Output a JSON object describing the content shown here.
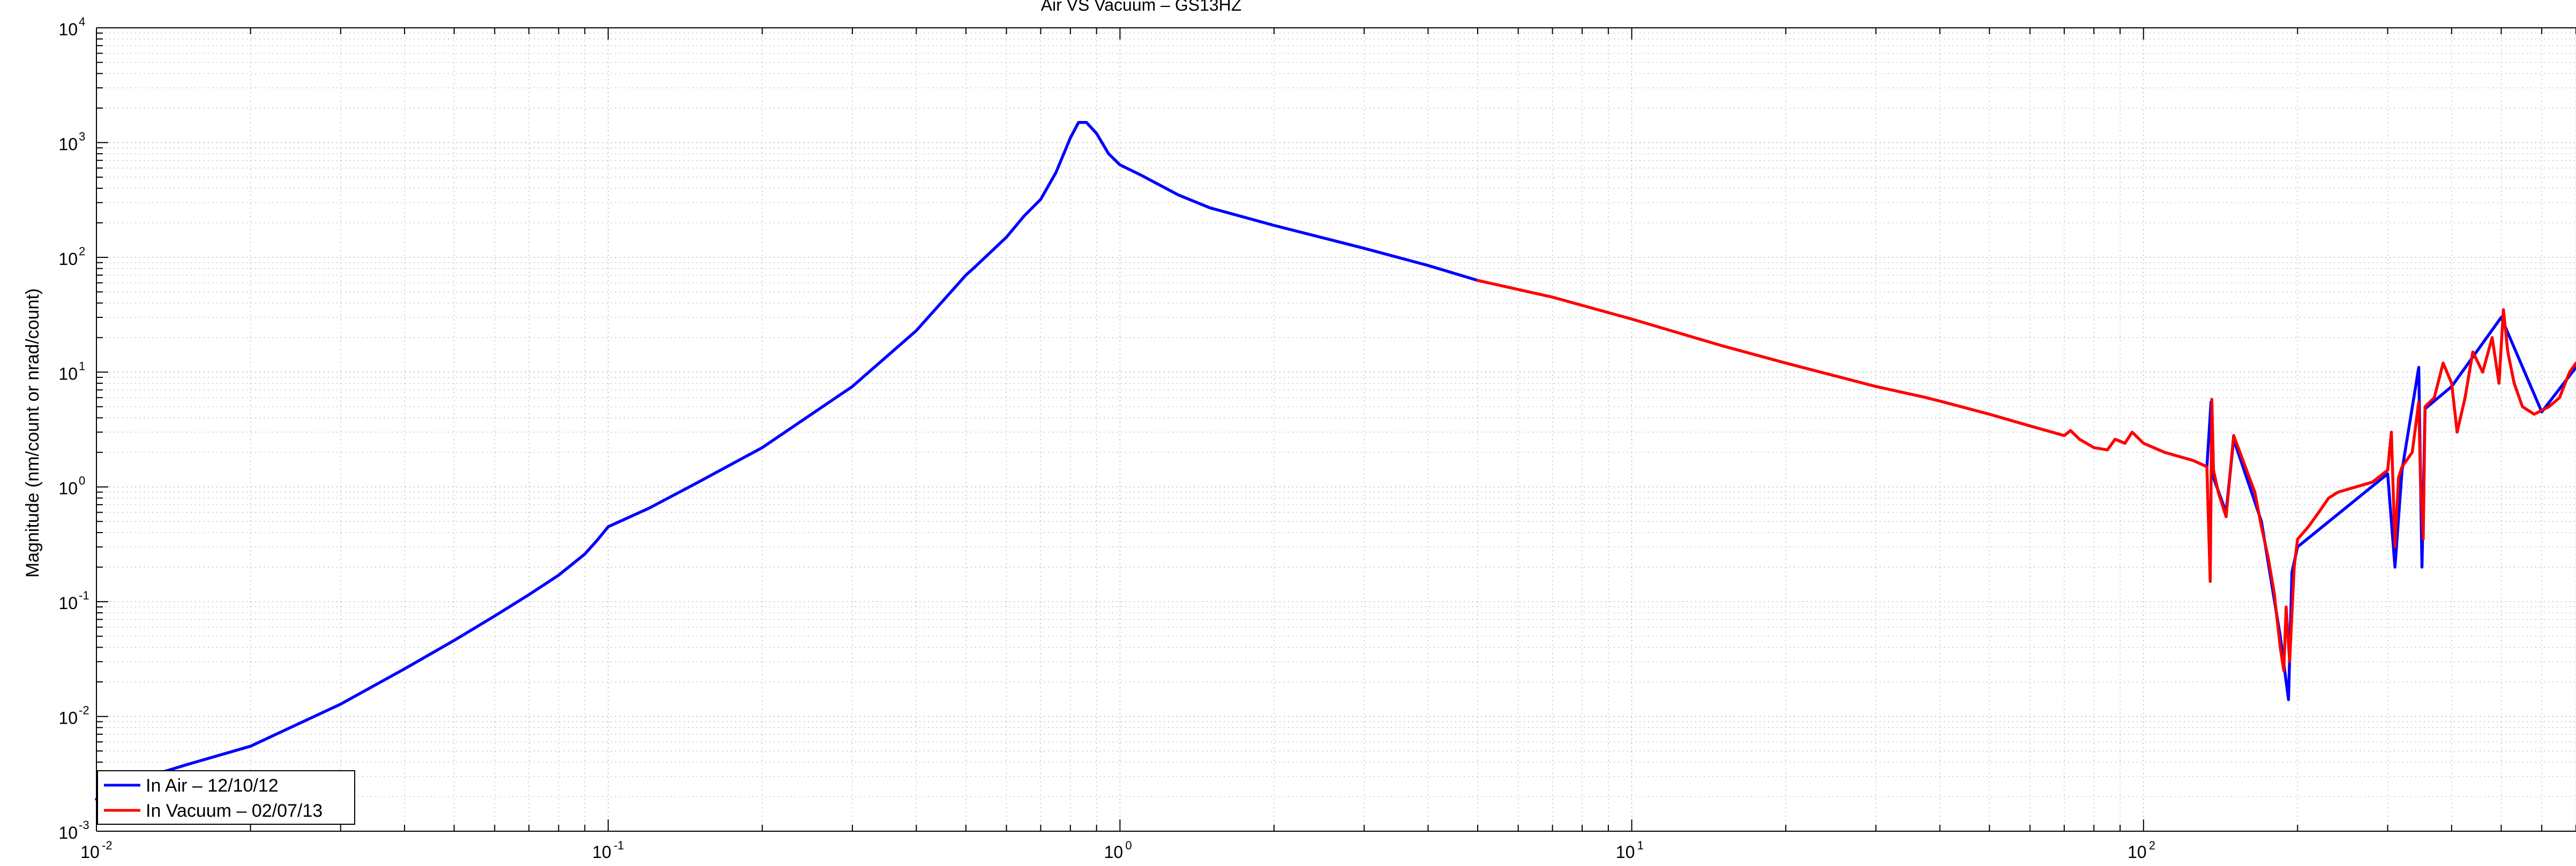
{
  "chart_data": {
    "type": "line",
    "title": "Air VS Vacuum – GS13HZ",
    "xlabel": "",
    "ylabel": "Magnitude (nm/count or nrad/count)",
    "xscale": "log",
    "yscale": "log",
    "xlim": [
      0.01,
      700
    ],
    "ylim": [
      0.001,
      10000
    ],
    "x_ticks": [
      {
        "base": "10",
        "exp": "-2",
        "value": 0.01
      },
      {
        "base": "10",
        "exp": "-1",
        "value": 0.1
      },
      {
        "base": "10",
        "exp": "0",
        "value": 1
      },
      {
        "base": "10",
        "exp": "1",
        "value": 10
      },
      {
        "base": "10",
        "exp": "2",
        "value": 100
      }
    ],
    "y_ticks": [
      {
        "base": "10",
        "exp": "-3",
        "value": 0.001
      },
      {
        "base": "10",
        "exp": "-2",
        "value": 0.01
      },
      {
        "base": "10",
        "exp": "-1",
        "value": 0.1
      },
      {
        "base": "10",
        "exp": "0",
        "value": 1
      },
      {
        "base": "10",
        "exp": "1",
        "value": 10
      },
      {
        "base": "10",
        "exp": "2",
        "value": 100
      },
      {
        "base": "10",
        "exp": "3",
        "value": 1000
      },
      {
        "base": "10",
        "exp": "4",
        "value": 10000
      }
    ],
    "grid": true,
    "legend_position": "bottom-left",
    "series": [
      {
        "name": "In Air – 12/10/12",
        "color": "#0000ff",
        "points": [
          [
            0.01,
            0.0019
          ],
          [
            0.012,
            0.0028
          ],
          [
            0.015,
            0.0038
          ],
          [
            0.02,
            0.0055
          ],
          [
            0.03,
            0.0128
          ],
          [
            0.04,
            0.026
          ],
          [
            0.05,
            0.046
          ],
          [
            0.06,
            0.075
          ],
          [
            0.07,
            0.115
          ],
          [
            0.08,
            0.17
          ],
          [
            0.09,
            0.26
          ],
          [
            0.095,
            0.34
          ],
          [
            0.1,
            0.45
          ],
          [
            0.12,
            0.65
          ],
          [
            0.15,
            1.1
          ],
          [
            0.2,
            2.2
          ],
          [
            0.3,
            7.5
          ],
          [
            0.4,
            23
          ],
          [
            0.5,
            70
          ],
          [
            0.52,
            82
          ],
          [
            0.6,
            150
          ],
          [
            0.65,
            230
          ],
          [
            0.7,
            320
          ],
          [
            0.75,
            550
          ],
          [
            0.8,
            1100
          ],
          [
            0.83,
            1500
          ],
          [
            0.86,
            1500
          ],
          [
            0.9,
            1200
          ],
          [
            0.95,
            800
          ],
          [
            1.0,
            640
          ],
          [
            1.1,
            520
          ],
          [
            1.3,
            350
          ],
          [
            1.5,
            270
          ],
          [
            2.0,
            190
          ],
          [
            3.0,
            120
          ],
          [
            4.0,
            85
          ],
          [
            5.0,
            63
          ]
        ]
      },
      {
        "name": "In Vacuum – 02/07/13",
        "color": "#ff0000",
        "points": [
          [
            5.0,
            63
          ],
          [
            7.0,
            45
          ],
          [
            10.0,
            29
          ],
          [
            15.0,
            17
          ],
          [
            20.0,
            12
          ],
          [
            30.0,
            7.5
          ],
          [
            37.0,
            6.1
          ],
          [
            40.0,
            5.6
          ],
          [
            50.0,
            4.3
          ],
          [
            60.0,
            3.4
          ],
          [
            70.0,
            2.8
          ],
          [
            72.0,
            3.1
          ],
          [
            75.0,
            2.6
          ],
          [
            80.0,
            2.2
          ],
          [
            85.0,
            2.1
          ],
          [
            88.0,
            2.6
          ],
          [
            92.0,
            2.4
          ],
          [
            95.0,
            3.0
          ],
          [
            100.0,
            2.4
          ],
          [
            110.0,
            2.0
          ],
          [
            125.0,
            1.7
          ],
          [
            133.0,
            1.5
          ],
          [
            135.0,
            0.15
          ],
          [
            136.0,
            5.8
          ],
          [
            137.0,
            1.4
          ],
          [
            140.0,
            0.9
          ],
          [
            145.0,
            0.55
          ],
          [
            150.0,
            2.8
          ],
          [
            155.0,
            1.9
          ],
          [
            160.0,
            1.3
          ],
          [
            165.0,
            0.9
          ],
          [
            170.0,
            0.45
          ],
          [
            175.0,
            0.25
          ],
          [
            180.0,
            0.12
          ],
          [
            185.0,
            0.04
          ],
          [
            188.0,
            0.025
          ],
          [
            190.0,
            0.09
          ],
          [
            193.0,
            0.03
          ],
          [
            197.0,
            0.2
          ],
          [
            200.0,
            0.35
          ],
          [
            210.0,
            0.45
          ],
          [
            220.0,
            0.6
          ],
          [
            230.0,
            0.8
          ],
          [
            240.0,
            0.9
          ],
          [
            260.0,
            1.0
          ],
          [
            280.0,
            1.1
          ],
          [
            300.0,
            1.4
          ],
          [
            305.0,
            3.0
          ],
          [
            310.0,
            0.3
          ],
          [
            315.0,
            1.2
          ],
          [
            320.0,
            1.5
          ],
          [
            335.0,
            2.0
          ],
          [
            345.0,
            5.5
          ],
          [
            348.0,
            1.0
          ],
          [
            352.0,
            0.35
          ],
          [
            355.0,
            5.0
          ],
          [
            370.0,
            6.0
          ],
          [
            385.0,
            12.0
          ],
          [
            400.0,
            8.0
          ],
          [
            410.0,
            3.0
          ],
          [
            425.0,
            6.0
          ],
          [
            440.0,
            15.0
          ],
          [
            460.0,
            10.0
          ],
          [
            480.0,
            20.0
          ],
          [
            495.0,
            8.0
          ],
          [
            505.0,
            35.0
          ],
          [
            515.0,
            15.0
          ],
          [
            530.0,
            8.0
          ],
          [
            550.0,
            5.0
          ],
          [
            580.0,
            4.3
          ],
          [
            620.0,
            5.0
          ],
          [
            650.0,
            6.0
          ],
          [
            680.0,
            10.0
          ],
          [
            700.0,
            12.0
          ]
        ]
      },
      {
        "name": "In Air – 12/10/12",
        "color": "#0000ff",
        "points": [
          [
            133.0,
            1.5
          ],
          [
            135.5,
            5.5
          ],
          [
            137.0,
            1.2
          ],
          [
            145.0,
            0.6
          ],
          [
            150.0,
            2.6
          ],
          [
            170.0,
            0.5
          ],
          [
            185.0,
            0.05
          ],
          [
            192.0,
            0.014
          ],
          [
            195.0,
            0.18
          ],
          [
            200.0,
            0.3
          ],
          [
            300.0,
            1.3
          ],
          [
            310.0,
            0.2
          ],
          [
            320.0,
            1.4
          ],
          [
            345.0,
            11.0
          ],
          [
            350.0,
            0.2
          ],
          [
            355.0,
            4.8
          ],
          [
            400.0,
            7.5
          ],
          [
            500.0,
            30.0
          ],
          [
            600.0,
            4.5
          ],
          [
            700.0,
            11.0
          ]
        ]
      }
    ]
  }
}
